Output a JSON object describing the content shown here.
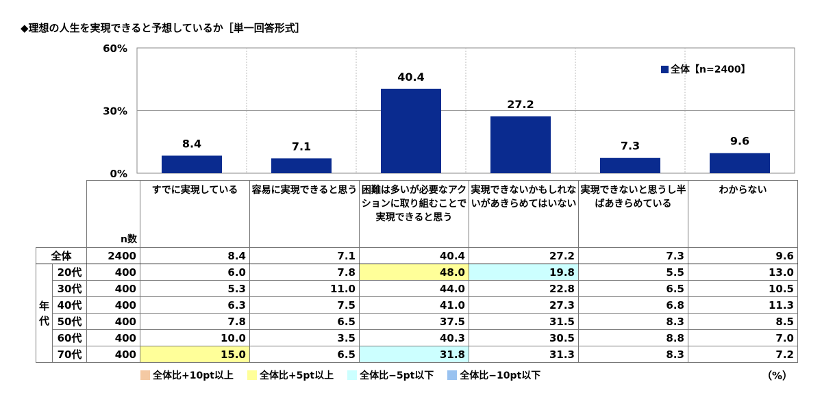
{
  "title": "◆理想の人生を実現できると予想しているか［単一回答形式］",
  "chart_data": {
    "type": "bar",
    "categories": [
      "すでに実現している",
      "容易に実現できると思う",
      "困難は多いが必要なアクションに取り組むことで実現できると思う",
      "実現できないかもしれないがあきらめてはいない",
      "実現できないと思うし半ばあきらめている",
      "わからない"
    ],
    "series": [
      {
        "name": "全体【n=2400】",
        "values": [
          8.4,
          7.1,
          40.4,
          27.2,
          7.3,
          9.6
        ]
      }
    ],
    "ylim": [
      0,
      60
    ],
    "yticks": [
      "0%",
      "30%",
      "60%"
    ],
    "grid": true,
    "legend": "top-right",
    "color": "#0a2b8f"
  },
  "table": {
    "n_header": "n数",
    "column_headers": [
      "すでに実現している",
      "容易に実現できると思う",
      "困難は多いが必要なアクションに取り組むことで実現できると思う",
      "実現できないかもしれないがあきらめてはいない",
      "実現できないと思うし半ばあきらめている",
      "わからない"
    ],
    "total_row": {
      "label": "全体",
      "n": "2400",
      "values": [
        "8.4",
        "7.1",
        "40.4",
        "27.2",
        "7.3",
        "9.6"
      ]
    },
    "group_label": "年代",
    "rows": [
      {
        "label": "20代",
        "n": "400",
        "values": [
          "6.0",
          "7.8",
          "48.0",
          "19.8",
          "5.5",
          "13.0"
        ],
        "marks": [
          "",
          "",
          "hi5",
          "lo5",
          "",
          ""
        ]
      },
      {
        "label": "30代",
        "n": "400",
        "values": [
          "5.3",
          "11.0",
          "44.0",
          "22.8",
          "6.5",
          "10.5"
        ],
        "marks": [
          "",
          "",
          "",
          "",
          "",
          ""
        ]
      },
      {
        "label": "40代",
        "n": "400",
        "values": [
          "6.3",
          "7.5",
          "41.0",
          "27.3",
          "6.8",
          "11.3"
        ],
        "marks": [
          "",
          "",
          "",
          "",
          "",
          ""
        ]
      },
      {
        "label": "50代",
        "n": "400",
        "values": [
          "7.8",
          "6.5",
          "37.5",
          "31.5",
          "8.3",
          "8.5"
        ],
        "marks": [
          "",
          "",
          "",
          "",
          "",
          ""
        ]
      },
      {
        "label": "60代",
        "n": "400",
        "values": [
          "10.0",
          "3.5",
          "40.3",
          "30.5",
          "8.8",
          "7.0"
        ],
        "marks": [
          "",
          "",
          "",
          "",
          "",
          ""
        ]
      },
      {
        "label": "70代",
        "n": "400",
        "values": [
          "15.0",
          "6.5",
          "31.8",
          "31.3",
          "8.3",
          "7.2"
        ],
        "marks": [
          "hi5",
          "",
          "lo5",
          "",
          "",
          ""
        ]
      }
    ]
  },
  "legend": [
    {
      "label": "全体比+10pt以上",
      "color": "#f4c9a3"
    },
    {
      "label": "全体比+5pt以上",
      "color": "#ffff99"
    },
    {
      "label": "全体比−5pt以下",
      "color": "#ccffff"
    },
    {
      "label": "全体比−10pt以下",
      "color": "#99c2f0"
    }
  ],
  "unit": "（%）"
}
